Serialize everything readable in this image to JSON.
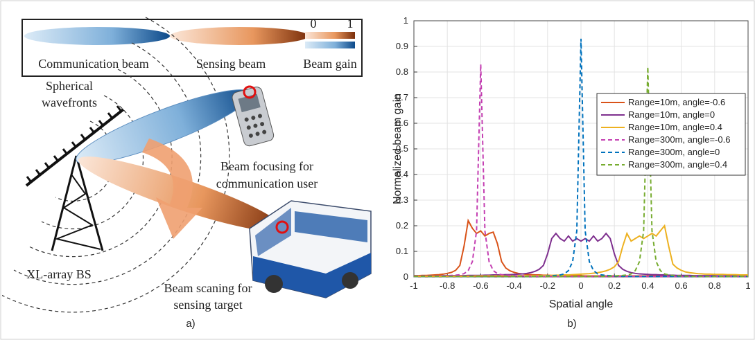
{
  "diagram": {
    "legend": {
      "communication": "Communication beam",
      "sensing": "Sensing beam",
      "gain": "Beam gain",
      "gain_min": "0",
      "gain_max": "1"
    },
    "wavefront_label": [
      "Spherical",
      "wavefronts"
    ],
    "focus_label": [
      "Beam focusing for",
      "communication user"
    ],
    "bs_label": "XL-array BS",
    "scan_label": [
      "Beam scaning for",
      "sensing target"
    ],
    "caption": "a)"
  },
  "chart_data": {
    "type": "line",
    "caption": "b)",
    "xlabel": "Spatial angle",
    "ylabel": "Normalized beam gain",
    "xlim": [
      -1,
      1
    ],
    "ylim": [
      0,
      1
    ],
    "xticks": [
      -1,
      -0.8,
      -0.6,
      -0.4,
      -0.2,
      0,
      0.2,
      0.4,
      0.6,
      0.8,
      1
    ],
    "yticks": [
      0,
      0.1,
      0.2,
      0.3,
      0.4,
      0.5,
      0.6,
      0.7,
      0.8,
      0.9,
      1
    ],
    "grid": true,
    "legend": "upper right",
    "x": [
      -1,
      -0.975,
      -0.95,
      -0.925,
      -0.9,
      -0.875,
      -0.85,
      -0.825,
      -0.8,
      -0.775,
      -0.75,
      -0.725,
      -0.7,
      -0.675,
      -0.65,
      -0.625,
      -0.6,
      -0.575,
      -0.55,
      -0.525,
      -0.5,
      -0.475,
      -0.45,
      -0.425,
      -0.4,
      -0.375,
      -0.35,
      -0.325,
      -0.3,
      -0.275,
      -0.25,
      -0.225,
      -0.2,
      -0.175,
      -0.15,
      -0.125,
      -0.1,
      -0.075,
      -0.05,
      -0.025,
      0,
      0.025,
      0.05,
      0.075,
      0.1,
      0.125,
      0.15,
      0.175,
      0.2,
      0.225,
      0.25,
      0.275,
      0.3,
      0.325,
      0.35,
      0.375,
      0.4,
      0.425,
      0.45,
      0.475,
      0.5,
      0.525,
      0.55,
      0.575,
      0.6,
      0.625,
      0.65,
      0.675,
      0.7,
      0.725,
      0.75,
      0.775,
      0.8,
      0.825,
      0.85,
      0.875,
      0.9,
      0.925,
      0.95,
      0.975,
      1
    ],
    "series": [
      {
        "name": "Range=10m,  angle=-0.6",
        "color": "#d95319",
        "linestyle": "solid",
        "values": [
          0.005,
          0.005,
          0.006,
          0.006,
          0.007,
          0.008,
          0.009,
          0.011,
          0.014,
          0.018,
          0.026,
          0.045,
          0.12,
          0.22,
          0.19,
          0.17,
          0.18,
          0.16,
          0.17,
          0.175,
          0.13,
          0.06,
          0.035,
          0.024,
          0.018,
          0.014,
          0.012,
          0.01,
          0.009,
          0.008,
          0.008,
          0.007,
          0.007,
          0.006,
          0.006,
          0.006,
          0.005,
          0.005,
          0.005,
          0.005,
          0.005,
          0.004,
          0.004,
          0.004,
          0.004,
          0.004,
          0.004,
          0.004,
          0.004,
          0.004,
          0.004,
          0.004,
          0.004,
          0.004,
          0.004,
          0.004,
          0.004,
          0.004,
          0.004,
          0.004,
          0.003,
          0.003,
          0.003,
          0.003,
          0.003,
          0.003,
          0.003,
          0.003,
          0.003,
          0.003,
          0.003,
          0.003,
          0.003,
          0.003,
          0.003,
          0.003,
          0.003,
          0.003,
          0.003,
          0.003,
          0.003
        ]
      },
      {
        "name": "Range=10m,  angle=0",
        "color": "#7e2f8e",
        "linestyle": "solid",
        "values": [
          0.004,
          0.004,
          0.004,
          0.004,
          0.004,
          0.004,
          0.004,
          0.005,
          0.005,
          0.005,
          0.005,
          0.005,
          0.005,
          0.006,
          0.006,
          0.006,
          0.006,
          0.007,
          0.007,
          0.008,
          0.008,
          0.008,
          0.009,
          0.009,
          0.01,
          0.011,
          0.012,
          0.014,
          0.017,
          0.022,
          0.03,
          0.045,
          0.09,
          0.15,
          0.17,
          0.15,
          0.14,
          0.16,
          0.14,
          0.15,
          0.14,
          0.15,
          0.14,
          0.16,
          0.14,
          0.15,
          0.17,
          0.15,
          0.09,
          0.045,
          0.03,
          0.022,
          0.017,
          0.014,
          0.012,
          0.011,
          0.01,
          0.009,
          0.009,
          0.008,
          0.008,
          0.007,
          0.007,
          0.006,
          0.006,
          0.006,
          0.006,
          0.005,
          0.005,
          0.005,
          0.005,
          0.005,
          0.005,
          0.004,
          0.004,
          0.004,
          0.004,
          0.004,
          0.004,
          0.004,
          0.004
        ]
      },
      {
        "name": "Range=10m,  angle=0.4",
        "color": "#edb120",
        "linestyle": "solid",
        "values": [
          0.003,
          0.003,
          0.003,
          0.003,
          0.003,
          0.003,
          0.003,
          0.003,
          0.003,
          0.003,
          0.003,
          0.003,
          0.003,
          0.003,
          0.003,
          0.004,
          0.004,
          0.004,
          0.004,
          0.004,
          0.004,
          0.004,
          0.004,
          0.004,
          0.004,
          0.005,
          0.005,
          0.005,
          0.005,
          0.005,
          0.005,
          0.006,
          0.006,
          0.006,
          0.007,
          0.007,
          0.008,
          0.008,
          0.009,
          0.01,
          0.011,
          0.012,
          0.013,
          0.015,
          0.017,
          0.02,
          0.024,
          0.03,
          0.04,
          0.06,
          0.12,
          0.17,
          0.14,
          0.15,
          0.16,
          0.15,
          0.16,
          0.17,
          0.16,
          0.18,
          0.2,
          0.12,
          0.05,
          0.035,
          0.026,
          0.02,
          0.017,
          0.015,
          0.013,
          0.012,
          0.011,
          0.011,
          0.01,
          0.01,
          0.01,
          0.009,
          0.009,
          0.009,
          0.008,
          0.008,
          0.008
        ]
      },
      {
        "name": "Range=300m, angle=-0.6",
        "color": "#c43fb2",
        "linestyle": "dashed",
        "values": [
          0.002,
          0.002,
          0.002,
          0.003,
          0.003,
          0.003,
          0.004,
          0.004,
          0.005,
          0.006,
          0.007,
          0.009,
          0.013,
          0.025,
          0.06,
          0.18,
          0.83,
          0.18,
          0.06,
          0.025,
          0.013,
          0.009,
          0.007,
          0.006,
          0.005,
          0.004,
          0.004,
          0.003,
          0.003,
          0.003,
          0.002,
          0.002,
          0.002,
          0.002,
          0.002,
          0.002,
          0.002,
          0.002,
          0.002,
          0.002,
          0.002,
          0.002,
          0.002,
          0.002,
          0.002,
          0.002,
          0.002,
          0.002,
          0.002,
          0.002,
          0.002,
          0.002,
          0.002,
          0.002,
          0.002,
          0.002,
          0.002,
          0.002,
          0.002,
          0.002,
          0.002,
          0.002,
          0.002,
          0.002,
          0.002,
          0.002,
          0.002,
          0.002,
          0.002,
          0.002,
          0.002,
          0.002,
          0.002,
          0.002,
          0.002,
          0.002,
          0.002,
          0.002,
          0.002,
          0.002,
          0.002
        ]
      },
      {
        "name": "Range=300m, angle=0",
        "color": "#0072bd",
        "linestyle": "dashed",
        "values": [
          0.002,
          0.002,
          0.002,
          0.002,
          0.002,
          0.002,
          0.002,
          0.002,
          0.002,
          0.002,
          0.002,
          0.002,
          0.002,
          0.002,
          0.002,
          0.002,
          0.002,
          0.002,
          0.002,
          0.002,
          0.002,
          0.002,
          0.002,
          0.002,
          0.002,
          0.002,
          0.002,
          0.002,
          0.002,
          0.002,
          0.003,
          0.003,
          0.004,
          0.005,
          0.006,
          0.008,
          0.012,
          0.025,
          0.06,
          0.18,
          0.93,
          0.18,
          0.06,
          0.025,
          0.012,
          0.008,
          0.006,
          0.005,
          0.004,
          0.003,
          0.003,
          0.002,
          0.002,
          0.002,
          0.002,
          0.002,
          0.002,
          0.002,
          0.002,
          0.002,
          0.002,
          0.002,
          0.002,
          0.002,
          0.002,
          0.002,
          0.002,
          0.002,
          0.002,
          0.002,
          0.002,
          0.002,
          0.002,
          0.002,
          0.002,
          0.002,
          0.002,
          0.002,
          0.002,
          0.002,
          0.002
        ]
      },
      {
        "name": "Range=300m, angle=0.4",
        "color": "#77ac30",
        "linestyle": "dashed",
        "values": [
          0.002,
          0.002,
          0.002,
          0.002,
          0.002,
          0.002,
          0.002,
          0.002,
          0.002,
          0.002,
          0.002,
          0.002,
          0.002,
          0.002,
          0.002,
          0.002,
          0.002,
          0.002,
          0.002,
          0.002,
          0.002,
          0.002,
          0.002,
          0.002,
          0.002,
          0.002,
          0.002,
          0.002,
          0.002,
          0.002,
          0.002,
          0.002,
          0.002,
          0.002,
          0.002,
          0.002,
          0.002,
          0.002,
          0.002,
          0.002,
          0.002,
          0.002,
          0.002,
          0.002,
          0.002,
          0.002,
          0.003,
          0.003,
          0.004,
          0.005,
          0.006,
          0.008,
          0.012,
          0.025,
          0.06,
          0.18,
          0.82,
          0.18,
          0.06,
          0.025,
          0.012,
          0.008,
          0.006,
          0.005,
          0.004,
          0.003,
          0.003,
          0.002,
          0.002,
          0.002,
          0.002,
          0.002,
          0.002,
          0.002,
          0.002,
          0.002,
          0.002,
          0.002,
          0.002,
          0.002,
          0.002
        ]
      }
    ]
  }
}
